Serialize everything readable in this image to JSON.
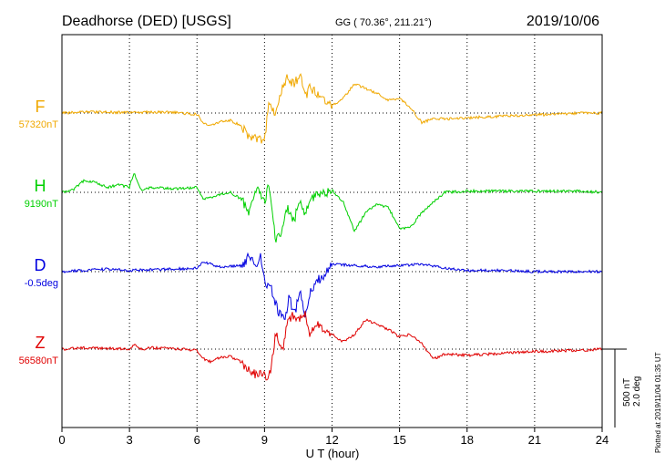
{
  "header": {
    "title": "Deadhorse (DED)  [USGS]",
    "coords": "GG ( 70.36°, 211.21°)",
    "date": "2019/10/06"
  },
  "chart_data": {
    "type": "line",
    "title": "Deadhorse (DED)  [USGS]",
    "xlabel": "U T (hour)",
    "xlim": [
      0,
      24
    ],
    "x_ticks": [
      0,
      3,
      6,
      9,
      12,
      15,
      18,
      21,
      24
    ],
    "x_tick_labels": [
      "0",
      "3",
      "6",
      "9",
      "12",
      "15",
      "18",
      "21",
      "24"
    ],
    "grid": true,
    "scale": {
      "line1": "500 nT",
      "line2": "2.0 deg"
    },
    "plotted_note": "Plotted at 2019/11/04 01:35 UT",
    "series": [
      {
        "name": "F",
        "baseline_label": "57320nT",
        "color": "#f0a800",
        "x": [
          0,
          1,
          2,
          3,
          4,
          5,
          6,
          6.3,
          6.6,
          7,
          7.5,
          8,
          8.2,
          8.5,
          8.8,
          9,
          9.2,
          9.5,
          9.8,
          10,
          10.3,
          10.6,
          10.8,
          11,
          11.3,
          11.6,
          12,
          12.5,
          13,
          13.5,
          14,
          14.5,
          15,
          15.5,
          16,
          16.5,
          17,
          18,
          19,
          20,
          21,
          22,
          23,
          24
        ],
        "values": [
          0,
          5,
          3,
          2,
          4,
          2,
          -5,
          -40,
          -50,
          -35,
          -30,
          -55,
          -90,
          -100,
          -110,
          -120,
          60,
          -10,
          110,
          140,
          120,
          150,
          60,
          100,
          80,
          60,
          30,
          60,
          120,
          100,
          80,
          50,
          60,
          20,
          -40,
          -20,
          -25,
          -20,
          -15,
          -10,
          -8,
          -5,
          0,
          0
        ]
      },
      {
        "name": "H",
        "baseline_label": "9190nT",
        "color": "#00d000",
        "x": [
          0,
          0.5,
          1,
          1.5,
          2,
          2.5,
          3,
          3.2,
          3.5,
          4,
          5,
          6,
          6.3,
          7,
          7.5,
          8,
          8.3,
          8.6,
          9,
          9.2,
          9.5,
          9.8,
          10,
          10.3,
          10.6,
          10.8,
          11,
          11.5,
          12,
          12.5,
          13,
          13.5,
          14,
          14.5,
          15,
          15.5,
          16,
          16.5,
          17,
          18,
          19,
          20,
          21,
          22,
          23,
          24
        ],
        "values": [
          0,
          10,
          50,
          40,
          20,
          30,
          20,
          80,
          10,
          20,
          15,
          20,
          -30,
          -10,
          0,
          -30,
          -80,
          20,
          -40,
          30,
          -200,
          -150,
          -60,
          -120,
          -20,
          -100,
          -20,
          -10,
          10,
          -40,
          -160,
          -80,
          -50,
          -60,
          -150,
          -140,
          -80,
          -40,
          0,
          5,
          5,
          5,
          5,
          5,
          5,
          0
        ]
      },
      {
        "name": "D",
        "baseline_label": "-0.5deg",
        "color": "#0000e0",
        "x": [
          0,
          1,
          2,
          3,
          4,
          5,
          6,
          6.3,
          7,
          8,
          8.3,
          8.6,
          8.8,
          9,
          9.3,
          9.6,
          9.9,
          10.1,
          10.3,
          10.6,
          10.8,
          11,
          11.3,
          11.6,
          12,
          13,
          14,
          15,
          16,
          17,
          18,
          19,
          20,
          21,
          22,
          23,
          24
        ],
        "values": [
          0,
          5,
          10,
          5,
          8,
          10,
          15,
          40,
          20,
          25,
          60,
          20,
          70,
          -40,
          -70,
          -160,
          -200,
          -100,
          -180,
          -80,
          -200,
          -90,
          -40,
          -20,
          30,
          25,
          20,
          25,
          30,
          15,
          5,
          5,
          5,
          0,
          0,
          0,
          0
        ]
      },
      {
        "name": "Z",
        "baseline_label": "56580nT",
        "color": "#e00000",
        "x": [
          0,
          1,
          2,
          3,
          3.2,
          3.5,
          4,
          5,
          6,
          6.3,
          6.6,
          7,
          7.5,
          8,
          8.3,
          8.6,
          9,
          9.2,
          9.5,
          9.8,
          10,
          10.3,
          10.6,
          10.8,
          11,
          11.3,
          11.6,
          12,
          12.5,
          13,
          13.5,
          14,
          14.5,
          15,
          15.5,
          16,
          16.5,
          17,
          18,
          19,
          20,
          21,
          22,
          23,
          24
        ],
        "values": [
          0,
          5,
          3,
          2,
          20,
          0,
          5,
          2,
          -5,
          -40,
          -50,
          -35,
          -30,
          -55,
          -90,
          -100,
          -110,
          -120,
          60,
          -10,
          110,
          140,
          120,
          150,
          60,
          100,
          80,
          60,
          30,
          60,
          120,
          100,
          80,
          50,
          60,
          20,
          -40,
          -20,
          -25,
          -20,
          -15,
          -10,
          -8,
          -5,
          0
        ]
      }
    ]
  }
}
